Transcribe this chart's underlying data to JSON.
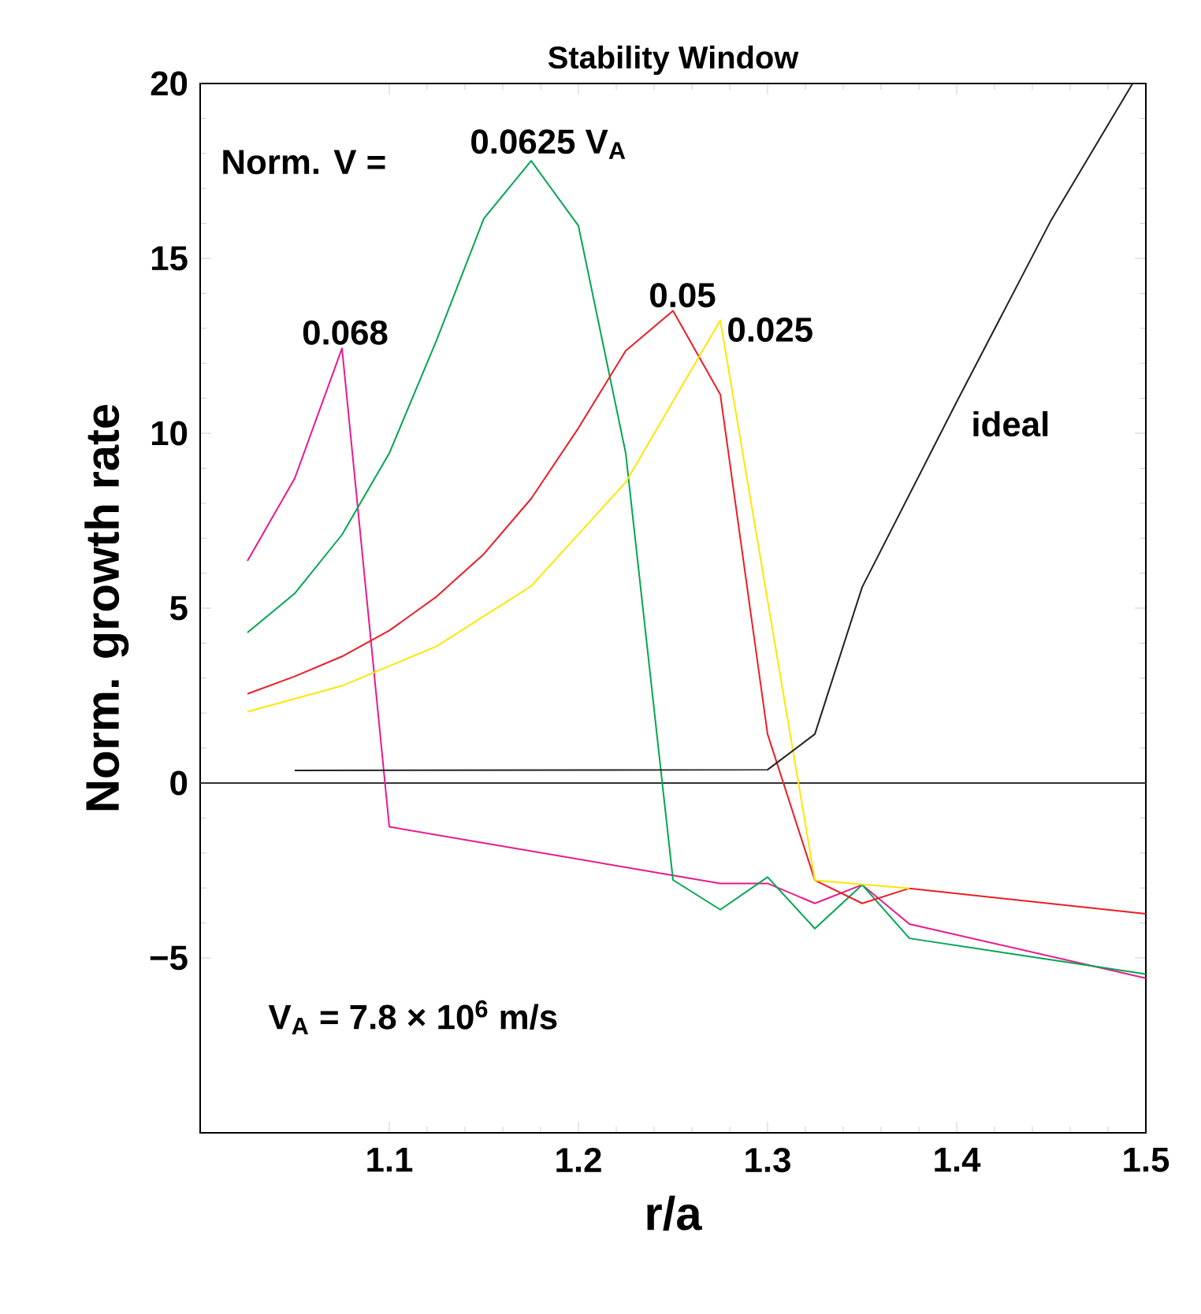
{
  "chart_data": {
    "type": "line",
    "title": "Stability Window",
    "xlabel": "r/a",
    "ylabel": "Norm. growth rate",
    "xlim": [
      1.0,
      1.5
    ],
    "ylim": [
      -10,
      20
    ],
    "xticks": [
      1.1,
      1.2,
      1.3,
      1.4,
      1.5
    ],
    "yticks": [
      {
        "value": -5,
        "label": "−5"
      },
      0,
      5,
      10,
      15,
      20
    ],
    "legend": false,
    "marker": "none",
    "line_style": "solid",
    "grid": false,
    "ref_lines": [
      {
        "axis": "y",
        "value": 0,
        "color": "#333333"
      }
    ],
    "annotations": [
      "Norm. V =",
      "V$_{A}$ = 7.8 × 10$^{6}$ m/s"
    ],
    "series": [
      {
        "name": "0.068",
        "color": "#e8198b",
        "x": [
          1.025,
          1.05,
          1.075,
          1.1,
          1.275,
          1.3,
          1.325,
          1.35,
          1.375,
          1.5
        ],
        "values": [
          6.35,
          8.71,
          12.43,
          -1.25,
          -2.87,
          -2.87,
          -3.44,
          -2.91,
          -4.03,
          -5.58
        ]
      },
      {
        "name": "0.0625 V$_{A}$",
        "color": "#00a651",
        "x": [
          1.025,
          1.05,
          1.075,
          1.1,
          1.125,
          1.15,
          1.175,
          1.2,
          1.225,
          1.25,
          1.275,
          1.3,
          1.325,
          1.35,
          1.375,
          1.5
        ],
        "values": [
          4.3,
          5.42,
          7.1,
          9.43,
          12.66,
          16.14,
          17.79,
          15.93,
          9.43,
          -2.77,
          -3.62,
          -2.69,
          -4.16,
          -2.91,
          -4.44,
          -5.46
        ]
      },
      {
        "name": "0.05",
        "color": "#ed1c24",
        "x": [
          1.025,
          1.05,
          1.075,
          1.1,
          1.125,
          1.15,
          1.175,
          1.2,
          1.225,
          1.25,
          1.275,
          1.3,
          1.325,
          1.35,
          1.375,
          1.5
        ],
        "values": [
          2.55,
          3.05,
          3.62,
          4.36,
          5.33,
          6.55,
          8.13,
          10.15,
          12.36,
          13.5,
          11.11,
          1.4,
          -2.78,
          -3.44,
          -3.01,
          -3.74
        ]
      },
      {
        "name": "0.025",
        "color": "#ffe600",
        "x": [
          1.025,
          1.075,
          1.125,
          1.175,
          1.225,
          1.275,
          1.325,
          1.375
        ],
        "values": [
          2.04,
          2.78,
          3.91,
          5.63,
          8.6,
          13.23,
          -2.78,
          -3.01
        ]
      },
      {
        "name": "ideal",
        "color": "#231f20",
        "x": [
          1.05,
          1.3,
          1.325,
          1.35,
          1.4,
          1.45,
          1.493
        ],
        "values": [
          0.36,
          0.38,
          1.4,
          5.6,
          10.9,
          16.1,
          20
        ]
      }
    ]
  }
}
